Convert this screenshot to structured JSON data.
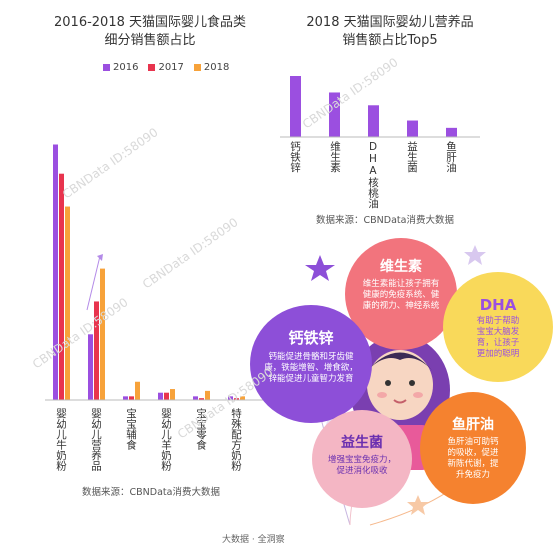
{
  "chart_data": [
    {
      "type": "bar",
      "title": "2016-2018 天猫国际婴儿食品类 细分销售额占比",
      "title_lines": [
        "2016-2018 天猫国际婴儿食品类",
        "细分销售额占比"
      ],
      "categories": [
        "婴幼儿牛奶粉",
        "婴幼儿营养品",
        "宝宝辅食",
        "婴幼儿羊奶粉",
        "宝宝零食",
        "特殊配方奶粉"
      ],
      "series": [
        {
          "name": "2016",
          "color": "#9b4fe0",
          "values": [
            70,
            18,
            1,
            2,
            1,
            1
          ]
        },
        {
          "name": "2017",
          "color": "#e8344e",
          "values": [
            62,
            27,
            1,
            2,
            0.5,
            0.5
          ]
        },
        {
          "name": "2018",
          "color": "#f7a23a",
          "values": [
            53,
            36,
            5,
            3,
            2.5,
            1
          ]
        }
      ],
      "ylim": [
        0,
        80
      ],
      "legend": "top",
      "source": "数据来源：CBNData消费大数据"
    },
    {
      "type": "bar",
      "title": "2018 天猫国际婴幼儿营养品 销售额占比Top5",
      "title_lines": [
        "2018 天猫国际婴幼儿营养品",
        "销售额占比Top5"
      ],
      "categories": [
        "钙铁锌",
        "维生素",
        "DHA核桃油",
        "益生菌",
        "鱼肝油"
      ],
      "series": [
        {
          "color": "#9b4fe0",
          "values": [
            100,
            73,
            52,
            27,
            15
          ]
        }
      ],
      "ylim": [
        0,
        100
      ],
      "source": "数据来源：CBNData消费大数据"
    }
  ],
  "infographic": {
    "balloons": [
      {
        "title": "维生素",
        "desc": [
          "维生素能让孩子拥有",
          "健康的免疫系统、健",
          "康的视力、神经系统"
        ],
        "color": "#f2747d"
      },
      {
        "title": "DHA",
        "desc": [
          "有助于帮助",
          "宝宝大脑发",
          "育，让孩子",
          "更加的聪明"
        ],
        "color": "#f9d95a"
      },
      {
        "title": "钙铁锌",
        "desc": [
          "钙能促进骨骼和牙齿健",
          "康，铁能增智、增食欲，",
          "锌能促进儿童智力发育"
        ],
        "color": "#8d4fd8"
      },
      {
        "title": "益生菌",
        "desc": [
          "增强宝宝免疫力，",
          "促进消化吸收"
        ],
        "color": "#f4b6c4"
      },
      {
        "title": "鱼肝油",
        "desc": [
          "鱼肝油可助钙",
          "的吸收，促进",
          "新陈代谢，提",
          "升免疫力"
        ],
        "color": "#f5822f"
      }
    ],
    "footer": "大数据 · 全洞察"
  },
  "watermark": "CBNData ID:58090",
  "colors": {
    "purple": "#9b4fe0",
    "red": "#e8344e",
    "orange": "#f7a23a"
  }
}
